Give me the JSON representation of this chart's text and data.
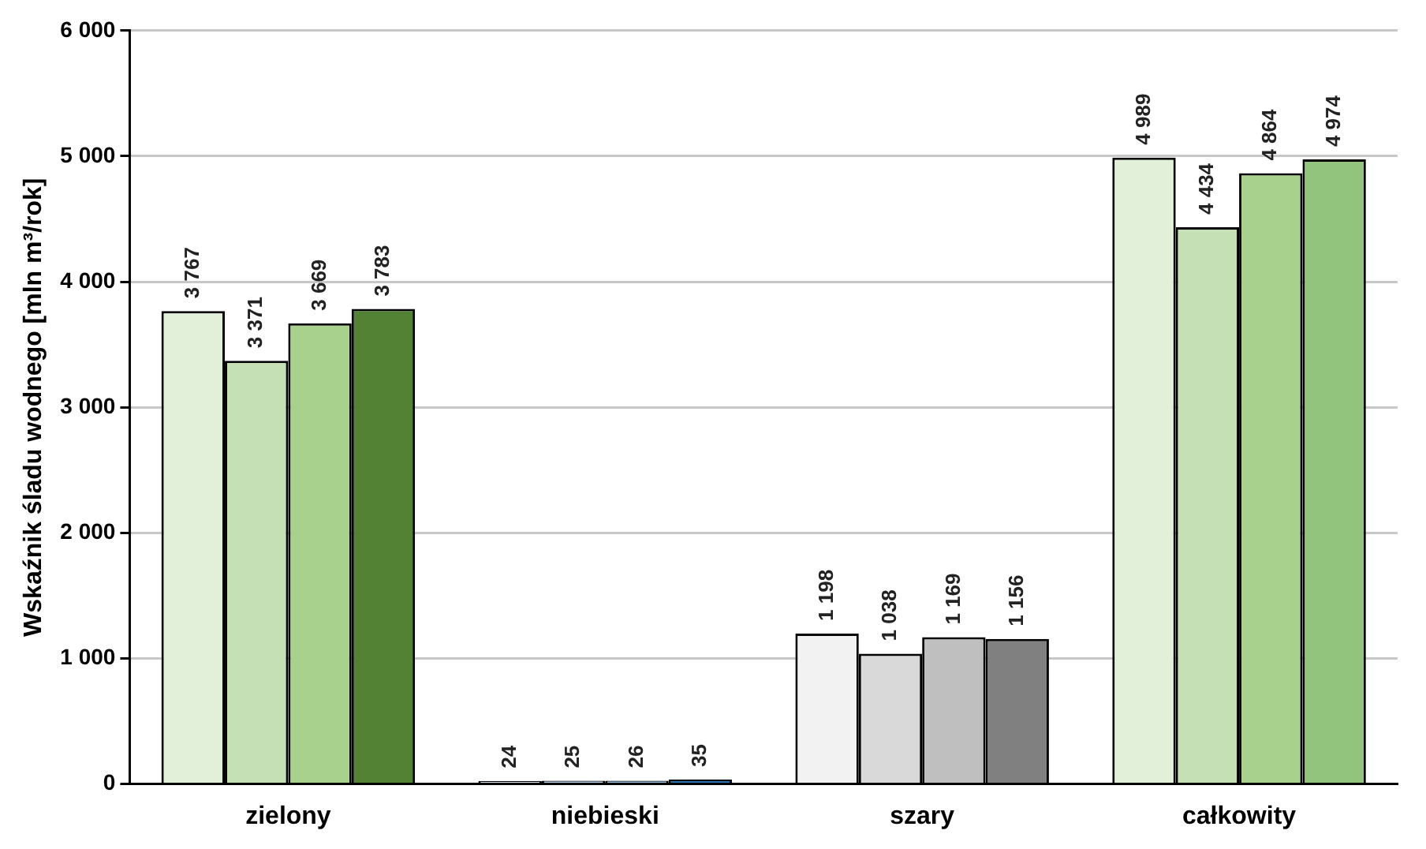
{
  "chart_data": {
    "type": "bar",
    "ylabel": "Wskaźnik śladu wodnego [mln m³/rok]",
    "categories": [
      "zielony",
      "niebieski",
      "szary",
      "całkowity"
    ],
    "series": [
      {
        "colors": [
          "#e2f0d9",
          "#ddebf7",
          "#f2f2f2",
          "#e2f0d9"
        ],
        "values": [
          3767,
          24,
          1198,
          4989
        ],
        "value_labels": [
          "3 767",
          "24",
          "1 198",
          "4 989"
        ]
      },
      {
        "colors": [
          "#c5e0b4",
          "#bdd7ee",
          "#d9d9d9",
          "#c5e0b4"
        ],
        "values": [
          3371,
          25,
          1038,
          4434
        ],
        "value_labels": [
          "3 371",
          "25",
          "1 038",
          "4 434"
        ]
      },
      {
        "colors": [
          "#a9d18e",
          "#9dc3e6",
          "#bfbfbf",
          "#a9d18e"
        ],
        "values": [
          3669,
          26,
          1169,
          4864
        ],
        "value_labels": [
          "3 669",
          "26",
          "1 169",
          "4 864"
        ]
      },
      {
        "colors": [
          "#548235",
          "#2e75b6",
          "#808080",
          "#93c47d"
        ],
        "values": [
          3783,
          35,
          1156,
          4974
        ],
        "value_labels": [
          "3 783",
          "35",
          "1 156",
          "4 974"
        ]
      }
    ],
    "ylim": [
      0,
      6000
    ],
    "yticks": [
      {
        "value": 0,
        "label": "0"
      },
      {
        "value": 1000,
        "label": "1 000"
      },
      {
        "value": 2000,
        "label": "2 000"
      },
      {
        "value": 3000,
        "label": "3 000"
      },
      {
        "value": 4000,
        "label": "4 000"
      },
      {
        "value": 5000,
        "label": "5 000"
      },
      {
        "value": 6000,
        "label": "6 000"
      }
    ],
    "grid": "y",
    "legend": false
  }
}
